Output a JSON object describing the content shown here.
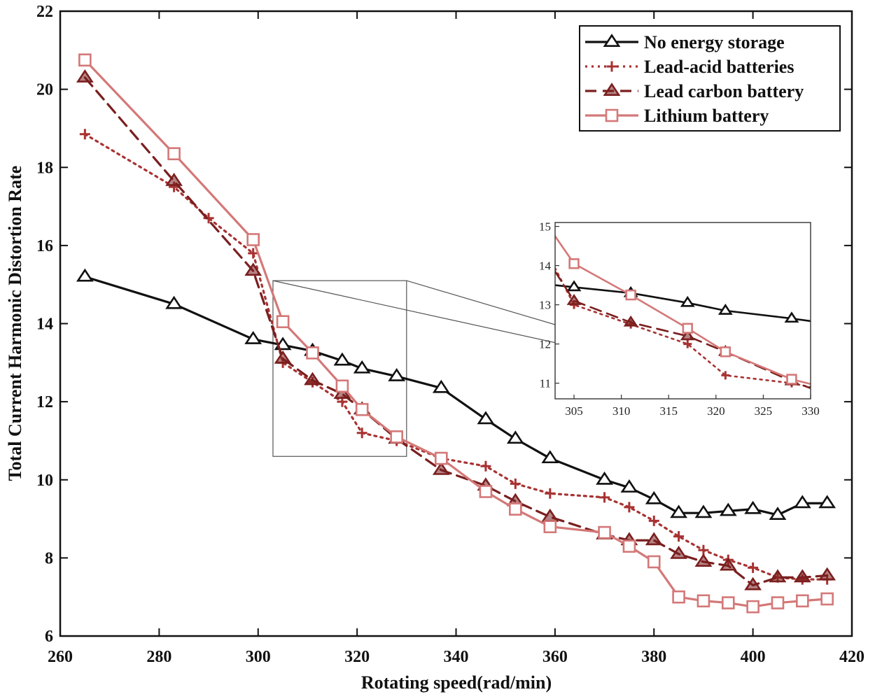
{
  "chart_data": {
    "type": "line",
    "title": "",
    "xlabel": "Rotating speed(rad/min)",
    "ylabel": "Total Current Harmonic Distortion Rate",
    "xlim": [
      260,
      420
    ],
    "ylim": [
      6,
      22
    ],
    "xticks": [
      260,
      280,
      300,
      320,
      340,
      360,
      380,
      400,
      420
    ],
    "yticks": [
      6,
      8,
      10,
      12,
      14,
      16,
      18,
      20,
      22
    ],
    "grid": false,
    "legend_position": "top-right",
    "series": [
      {
        "name": "No energy storage",
        "color": "#111111",
        "line_style": "solid",
        "marker": "triangle",
        "x": [
          265,
          283,
          299,
          305,
          311,
          317,
          321,
          328,
          337,
          346,
          352,
          359,
          370,
          375,
          380,
          385,
          390,
          395,
          400,
          405,
          410,
          415
        ],
        "y": [
          15.2,
          14.5,
          13.6,
          13.45,
          13.3,
          13.05,
          12.85,
          12.65,
          12.35,
          11.55,
          11.05,
          10.55,
          10.0,
          9.8,
          9.5,
          9.15,
          9.15,
          9.2,
          9.25,
          9.1,
          9.4,
          9.4
        ]
      },
      {
        "name": "Lead-acid batteries",
        "color": "#a83232",
        "line_style": "dotted",
        "marker": "plus",
        "x": [
          265,
          283,
          290,
          299,
          305,
          311,
          317,
          321,
          328,
          337,
          346,
          352,
          359,
          370,
          375,
          380,
          385,
          390,
          395,
          400,
          405,
          410,
          415
        ],
        "y": [
          18.85,
          17.5,
          16.7,
          15.8,
          13.0,
          12.5,
          12.0,
          11.2,
          11.0,
          10.55,
          10.35,
          9.9,
          9.65,
          9.55,
          9.3,
          8.95,
          8.55,
          8.2,
          7.95,
          7.75,
          7.5,
          7.45,
          7.45
        ]
      },
      {
        "name": "Lead carbon battery",
        "color": "#7a1f1f",
        "line_style": "dashed",
        "marker": "triangle-filled",
        "x": [
          265,
          283,
          299,
          305,
          311,
          317,
          321,
          328,
          337,
          346,
          352,
          359,
          370,
          375,
          380,
          385,
          390,
          395,
          400,
          405,
          410,
          415
        ],
        "y": [
          20.3,
          17.65,
          15.35,
          13.1,
          12.55,
          12.2,
          11.8,
          11.05,
          10.25,
          9.85,
          9.45,
          9.05,
          8.6,
          8.45,
          8.45,
          8.1,
          7.9,
          7.8,
          7.3,
          7.5,
          7.5,
          7.55
        ]
      },
      {
        "name": "Lithium battery",
        "color": "#d47878",
        "line_style": "solid",
        "marker": "square",
        "x": [
          265,
          283,
          299,
          305,
          311,
          317,
          321,
          328,
          337,
          346,
          352,
          359,
          370,
          375,
          380,
          385,
          390,
          395,
          400,
          405,
          410,
          415
        ],
        "y": [
          20.75,
          18.35,
          16.15,
          14.05,
          13.25,
          12.4,
          11.8,
          11.1,
          10.55,
          9.7,
          9.25,
          8.8,
          8.65,
          8.3,
          7.9,
          7.0,
          6.9,
          6.85,
          6.75,
          6.85,
          6.9,
          6.95
        ]
      }
    ],
    "inset": {
      "xlim": [
        303,
        330
      ],
      "ylim": [
        10.6,
        15.1
      ],
      "xticks": [
        305,
        310,
        315,
        320,
        325,
        330
      ],
      "yticks": [
        11,
        12,
        13,
        14,
        15
      ],
      "zoom_box_data": {
        "x": [
          303,
          330
        ],
        "y": [
          10.6,
          15.1
        ]
      }
    }
  }
}
